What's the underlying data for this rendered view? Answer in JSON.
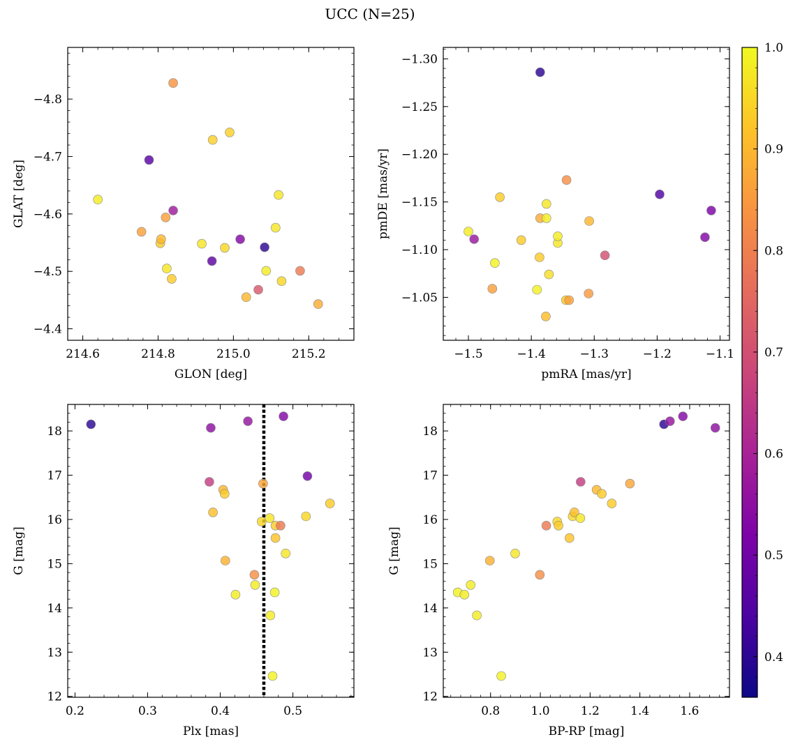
{
  "title": "UCC (N=25)",
  "colorbar": {
    "range": [
      0.36,
      1.0
    ],
    "ticks": [
      0.4,
      0.5,
      0.6,
      0.7,
      0.8,
      0.9,
      1.0
    ],
    "tick_labels": [
      "0.4",
      "0.5",
      "0.6",
      "0.7",
      "0.8",
      "0.9",
      "1.0"
    ],
    "colormap": "plasma"
  },
  "chart_data": [
    {
      "type": "scatter",
      "xlabel": "GLON [deg]",
      "ylabel": "GLAT [deg]",
      "xlim": [
        214.56,
        215.32
      ],
      "ylim": [
        -4.89,
        -4.38
      ],
      "xticks": [
        214.6,
        214.8,
        215.0,
        215.2
      ],
      "xtick_labels": [
        "214.6",
        "214.8",
        "215.0",
        "215.2"
      ],
      "yticks": [
        -4.4,
        -4.5,
        -4.6,
        -4.7,
        -4.8
      ],
      "ytick_labels": [
        "−4.4",
        "−4.5",
        "−4.6",
        "−4.7",
        "−4.8"
      ],
      "points": [
        {
          "x": 214.64,
          "y": -4.625,
          "c": 0.98
        },
        {
          "x": 214.756,
          "y": -4.569,
          "c": 0.86
        },
        {
          "x": 214.776,
          "y": -4.694,
          "c": 0.46
        },
        {
          "x": 214.806,
          "y": -4.549,
          "c": 0.93
        },
        {
          "x": 214.808,
          "y": -4.556,
          "c": 0.9
        },
        {
          "x": 214.82,
          "y": -4.594,
          "c": 0.86
        },
        {
          "x": 214.823,
          "y": -4.505,
          "c": 0.97
        },
        {
          "x": 214.836,
          "y": -4.487,
          "c": 0.93
        },
        {
          "x": 214.84,
          "y": -4.606,
          "c": 0.58
        },
        {
          "x": 214.84,
          "y": -4.828,
          "c": 0.84
        },
        {
          "x": 214.916,
          "y": -4.548,
          "c": 0.97
        },
        {
          "x": 214.943,
          "y": -4.518,
          "c": 0.47
        },
        {
          "x": 214.945,
          "y": -4.729,
          "c": 0.94
        },
        {
          "x": 214.977,
          "y": -4.541,
          "c": 0.95
        },
        {
          "x": 214.99,
          "y": -4.742,
          "c": 0.94
        },
        {
          "x": 215.018,
          "y": -4.556,
          "c": 0.53
        },
        {
          "x": 215.034,
          "y": -4.455,
          "c": 0.9
        },
        {
          "x": 215.066,
          "y": -4.468,
          "c": 0.72
        },
        {
          "x": 215.083,
          "y": -4.542,
          "c": 0.4
        },
        {
          "x": 215.087,
          "y": -4.501,
          "c": 0.98
        },
        {
          "x": 215.112,
          "y": -4.576,
          "c": 0.97
        },
        {
          "x": 215.12,
          "y": -4.633,
          "c": 0.97
        },
        {
          "x": 215.128,
          "y": -4.483,
          "c": 0.95
        },
        {
          "x": 215.177,
          "y": -4.501,
          "c": 0.79
        },
        {
          "x": 215.225,
          "y": -4.443,
          "c": 0.88
        }
      ]
    },
    {
      "type": "scatter",
      "xlabel": "pmRA [mas/yr]",
      "ylabel": "pmDE [mas/yr]",
      "xlim": [
        -1.54,
        -1.085
      ],
      "ylim": [
        -1.312,
        -1.005
      ],
      "xticks": [
        -1.5,
        -1.4,
        -1.3,
        -1.2,
        -1.1
      ],
      "xtick_labels": [
        "−1.5",
        "−1.4",
        "−1.3",
        "−1.2",
        "−1.1"
      ],
      "yticks": [
        -1.05,
        -1.1,
        -1.15,
        -1.2,
        -1.25,
        -1.3
      ],
      "ytick_labels": [
        "−1.05",
        "−1.10",
        "−1.15",
        "−1.20",
        "−1.25",
        "−1.30"
      ],
      "points": [
        {
          "x": -1.5,
          "y": -1.119,
          "c": 0.98
        },
        {
          "x": -1.491,
          "y": -1.111,
          "c": 0.57
        },
        {
          "x": -1.462,
          "y": -1.059,
          "c": 0.86
        },
        {
          "x": -1.458,
          "y": -1.086,
          "c": 0.99
        },
        {
          "x": -1.45,
          "y": -1.155,
          "c": 0.93
        },
        {
          "x": -1.416,
          "y": -1.11,
          "c": 0.93
        },
        {
          "x": -1.391,
          "y": -1.058,
          "c": 0.99
        },
        {
          "x": -1.387,
          "y": -1.092,
          "c": 0.93
        },
        {
          "x": -1.386,
          "y": -1.133,
          "c": 0.88
        },
        {
          "x": -1.386,
          "y": -1.286,
          "c": 0.4
        },
        {
          "x": -1.377,
          "y": -1.03,
          "c": 0.91
        },
        {
          "x": -1.376,
          "y": -1.133,
          "c": 0.98
        },
        {
          "x": -1.376,
          "y": -1.148,
          "c": 0.97
        },
        {
          "x": -1.372,
          "y": -1.074,
          "c": 0.96
        },
        {
          "x": -1.358,
          "y": -1.107,
          "c": 0.97
        },
        {
          "x": -1.358,
          "y": -1.114,
          "c": 0.98
        },
        {
          "x": -1.345,
          "y": -1.047,
          "c": 0.93
        },
        {
          "x": -1.344,
          "y": -1.173,
          "c": 0.83
        },
        {
          "x": -1.34,
          "y": -1.047,
          "c": 0.86
        },
        {
          "x": -1.309,
          "y": -1.054,
          "c": 0.85
        },
        {
          "x": -1.308,
          "y": -1.13,
          "c": 0.9
        },
        {
          "x": -1.283,
          "y": -1.094,
          "c": 0.7
        },
        {
          "x": -1.196,
          "y": -1.158,
          "c": 0.45
        },
        {
          "x": -1.124,
          "y": -1.113,
          "c": 0.53
        },
        {
          "x": -1.114,
          "y": -1.141,
          "c": 0.52
        }
      ]
    },
    {
      "type": "scatter",
      "xlabel": "Plx [mas]",
      "ylabel": "G [mag]",
      "xlim": [
        0.19,
        0.584
      ],
      "ylim": [
        18.6,
        11.98
      ],
      "xticks": [
        0.2,
        0.3,
        0.4,
        0.5
      ],
      "xtick_labels": [
        "0.2",
        "0.3",
        "0.4",
        "0.5"
      ],
      "yticks": [
        12,
        13,
        14,
        15,
        16,
        17,
        18
      ],
      "ytick_labels": [
        "12",
        "13",
        "14",
        "15",
        "16",
        "17",
        "18"
      ],
      "vline": 0.46,
      "points": [
        {
          "x": 0.222,
          "y": 18.15,
          "c": 0.4
        },
        {
          "x": 0.385,
          "y": 16.85,
          "c": 0.66
        },
        {
          "x": 0.387,
          "y": 18.07,
          "c": 0.55
        },
        {
          "x": 0.39,
          "y": 16.16,
          "c": 0.91
        },
        {
          "x": 0.404,
          "y": 16.67,
          "c": 0.9
        },
        {
          "x": 0.406,
          "y": 16.58,
          "c": 0.93
        },
        {
          "x": 0.407,
          "y": 15.07,
          "c": 0.89
        },
        {
          "x": 0.421,
          "y": 14.3,
          "c": 0.98
        },
        {
          "x": 0.438,
          "y": 18.22,
          "c": 0.56
        },
        {
          "x": 0.447,
          "y": 14.75,
          "c": 0.83
        },
        {
          "x": 0.448,
          "y": 14.52,
          "c": 0.98
        },
        {
          "x": 0.457,
          "y": 15.95,
          "c": 0.95
        },
        {
          "x": 0.459,
          "y": 16.81,
          "c": 0.87
        },
        {
          "x": 0.468,
          "y": 16.03,
          "c": 0.97
        },
        {
          "x": 0.469,
          "y": 13.83,
          "c": 0.98
        },
        {
          "x": 0.472,
          "y": 12.46,
          "c": 0.99
        },
        {
          "x": 0.475,
          "y": 14.35,
          "c": 0.99
        },
        {
          "x": 0.476,
          "y": 15.58,
          "c": 0.92
        },
        {
          "x": 0.476,
          "y": 15.86,
          "c": 0.93
        },
        {
          "x": 0.483,
          "y": 15.86,
          "c": 0.79
        },
        {
          "x": 0.487,
          "y": 18.33,
          "c": 0.53
        },
        {
          "x": 0.49,
          "y": 15.23,
          "c": 0.97
        },
        {
          "x": 0.518,
          "y": 16.07,
          "c": 0.95
        },
        {
          "x": 0.52,
          "y": 16.98,
          "c": 0.5
        },
        {
          "x": 0.551,
          "y": 16.36,
          "c": 0.93
        }
      ]
    },
    {
      "type": "scatter",
      "xlabel": "BP-RP [mag]",
      "ylabel": "G [mag]",
      "xlim": [
        0.61,
        1.76
      ],
      "ylim": [
        18.6,
        11.98
      ],
      "xticks": [
        0.8,
        1.0,
        1.2,
        1.4,
        1.6
      ],
      "xtick_labels": [
        "0.8",
        "1.0",
        "1.2",
        "1.4",
        "1.6"
      ],
      "yticks": [
        12,
        13,
        14,
        15,
        16,
        17,
        18
      ],
      "ytick_labels": [
        "12",
        "13",
        "14",
        "15",
        "16",
        "17",
        "18"
      ],
      "points": [
        {
          "x": 0.668,
          "y": 14.35,
          "c": 0.99
        },
        {
          "x": 0.695,
          "y": 14.3,
          "c": 0.98
        },
        {
          "x": 0.72,
          "y": 14.52,
          "c": 0.98
        },
        {
          "x": 0.745,
          "y": 13.83,
          "c": 0.98
        },
        {
          "x": 0.797,
          "y": 15.07,
          "c": 0.89
        },
        {
          "x": 0.843,
          "y": 12.46,
          "c": 0.99
        },
        {
          "x": 0.899,
          "y": 15.23,
          "c": 0.97
        },
        {
          "x": 0.998,
          "y": 14.75,
          "c": 0.83
        },
        {
          "x": 1.024,
          "y": 15.86,
          "c": 0.79
        },
        {
          "x": 1.068,
          "y": 15.95,
          "c": 0.95
        },
        {
          "x": 1.073,
          "y": 15.86,
          "c": 0.93
        },
        {
          "x": 1.117,
          "y": 15.58,
          "c": 0.92
        },
        {
          "x": 1.13,
          "y": 16.07,
          "c": 0.95
        },
        {
          "x": 1.137,
          "y": 16.16,
          "c": 0.91
        },
        {
          "x": 1.161,
          "y": 16.03,
          "c": 0.97
        },
        {
          "x": 1.162,
          "y": 16.85,
          "c": 0.66
        },
        {
          "x": 1.226,
          "y": 16.67,
          "c": 0.9
        },
        {
          "x": 1.247,
          "y": 16.58,
          "c": 0.93
        },
        {
          "x": 1.287,
          "y": 16.36,
          "c": 0.93
        },
        {
          "x": 1.36,
          "y": 16.81,
          "c": 0.87
        },
        {
          "x": 1.497,
          "y": 18.15,
          "c": 0.4
        },
        {
          "x": 1.521,
          "y": 18.22,
          "c": 0.56
        },
        {
          "x": 1.573,
          "y": 18.33,
          "c": 0.53
        },
        {
          "x": 1.703,
          "y": 18.07,
          "c": 0.55
        }
      ]
    }
  ]
}
